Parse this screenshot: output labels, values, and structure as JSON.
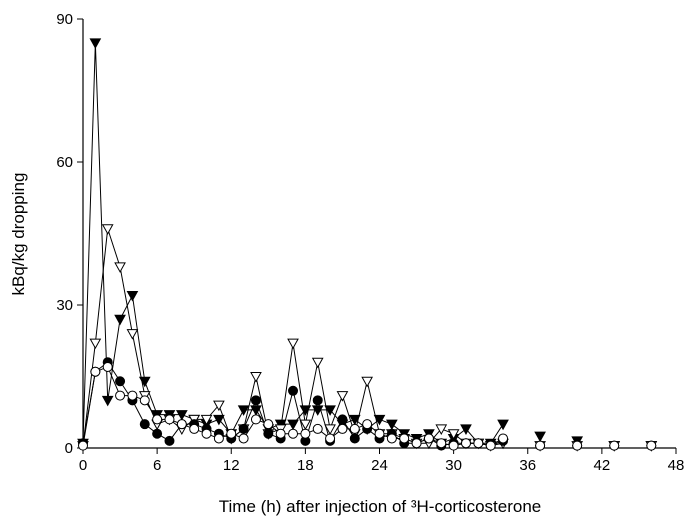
{
  "chart_data": {
    "type": "line",
    "xlabel": "Time (h) after injection of ³H-corticosterone",
    "ylabel": "kBq/kg dropping",
    "x": [
      0,
      1,
      2,
      3,
      4,
      5,
      6,
      7,
      8,
      9,
      10,
      11,
      12,
      13,
      14,
      15,
      16,
      17,
      18,
      19,
      20,
      21,
      22,
      23,
      24,
      25,
      26,
      27,
      28,
      29,
      30,
      31,
      32,
      33,
      34,
      35,
      36,
      37,
      38,
      39,
      40,
      41,
      42,
      43,
      44,
      45,
      46
    ],
    "xlim": [
      0,
      48
    ],
    "xticks": [
      0,
      6,
      12,
      18,
      24,
      30,
      36,
      42,
      48
    ],
    "ylim": [
      0,
      90
    ],
    "yticks": [
      0,
      30,
      60,
      90
    ],
    "series": [
      {
        "marker": "triangle-down",
        "filled": true,
        "color": "#000000",
        "values": [
          1,
          85,
          10,
          27,
          32,
          14,
          7,
          7,
          7,
          6,
          5,
          6,
          3,
          8,
          8,
          4,
          5,
          5,
          8,
          8,
          8,
          5,
          6,
          4,
          6,
          5,
          3,
          2,
          3,
          1,
          2,
          4,
          1,
          1,
          5,
          null,
          null,
          2.5,
          null,
          null,
          1.5,
          null,
          null,
          0.5,
          null,
          null,
          0.5
        ]
      },
      {
        "marker": "triangle-down",
        "filled": false,
        "color": "#000000",
        "values": [
          0.5,
          22,
          46,
          38,
          24,
          11,
          5,
          6,
          4,
          6,
          6,
          9,
          2,
          4,
          15,
          3,
          4,
          22,
          5,
          18,
          4,
          11,
          3,
          14,
          3,
          3,
          2,
          1,
          1,
          4,
          3,
          1,
          1,
          0.5,
          1,
          null,
          null,
          0.5,
          null,
          null,
          0.5,
          null,
          null,
          0.5,
          null,
          null,
          0.5
        ]
      },
      {
        "marker": "circle",
        "filled": true,
        "color": "#000000",
        "values": [
          1,
          16,
          18,
          14,
          10,
          5,
          3,
          1.5,
          5,
          5,
          4,
          3,
          2,
          4,
          10,
          3,
          2,
          12,
          1.5,
          10,
          1.5,
          6,
          2,
          4,
          2,
          3,
          1,
          1,
          2,
          0.5,
          1,
          1,
          1,
          0.5,
          1.5,
          null,
          null,
          0.5,
          null,
          null,
          0.5,
          null,
          null,
          0.5,
          null,
          null,
          0.5
        ]
      },
      {
        "marker": "circle",
        "filled": false,
        "color": "#000000",
        "values": [
          0.5,
          16,
          17,
          11,
          11,
          10,
          6,
          6,
          5,
          4,
          3,
          2,
          3,
          2,
          6,
          5,
          3,
          3,
          3,
          4,
          2,
          4,
          4,
          5,
          3,
          2,
          2,
          1,
          2,
          1,
          0.5,
          1,
          1,
          0.5,
          2,
          null,
          null,
          0.5,
          null,
          null,
          0.5,
          null,
          null,
          0.5,
          null,
          null,
          0.5
        ]
      }
    ]
  }
}
